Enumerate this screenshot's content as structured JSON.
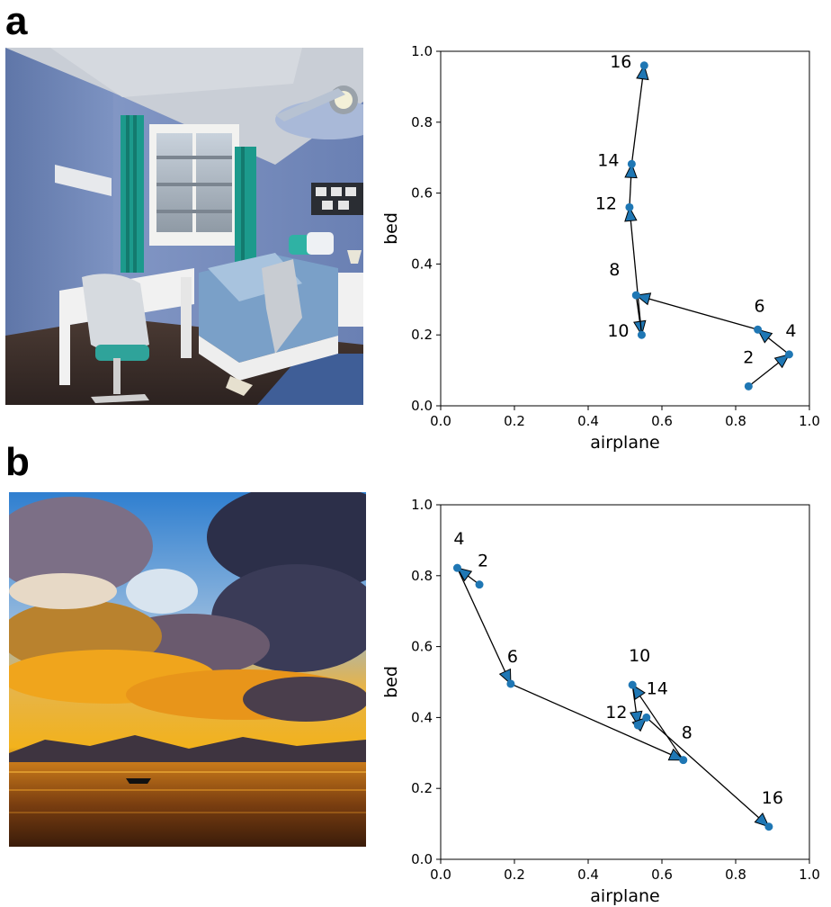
{
  "panels": [
    {
      "letter": "a"
    },
    {
      "letter": "b"
    }
  ],
  "colors": {
    "point": "#1f77b4",
    "arrow": "#000000",
    "axis": "#000000"
  },
  "chart_data": [
    {
      "type": "scatter",
      "panel": "a",
      "title": "",
      "xlabel": "airplane",
      "ylabel": "bed",
      "xlim": [
        0,
        1
      ],
      "ylim": [
        0,
        1
      ],
      "xticks": [
        "0.0",
        "0.2",
        "0.4",
        "0.6",
        "0.8",
        "1.0"
      ],
      "yticks": [
        "0.0",
        "0.2",
        "0.4",
        "0.6",
        "0.8",
        "1.0"
      ],
      "grid": false,
      "connected_by_arrows": true,
      "points": [
        {
          "label": "2",
          "x": 0.835,
          "y": 0.055
        },
        {
          "label": "4",
          "x": 0.945,
          "y": 0.145
        },
        {
          "label": "6",
          "x": 0.86,
          "y": 0.215
        },
        {
          "label": "8",
          "x": 0.53,
          "y": 0.312
        },
        {
          "label": "10",
          "x": 0.545,
          "y": 0.2
        },
        {
          "label": "12",
          "x": 0.512,
          "y": 0.56
        },
        {
          "label": "14",
          "x": 0.518,
          "y": 0.682
        },
        {
          "label": "16",
          "x": 0.552,
          "y": 0.96
        }
      ]
    },
    {
      "type": "scatter",
      "panel": "b",
      "title": "",
      "xlabel": "airplane",
      "ylabel": "bed",
      "xlim": [
        0,
        1
      ],
      "ylim": [
        0,
        1
      ],
      "xticks": [
        "0.0",
        "0.2",
        "0.4",
        "0.6",
        "0.8",
        "1.0"
      ],
      "yticks": [
        "0.0",
        "0.2",
        "0.4",
        "0.6",
        "0.8",
        "1.0"
      ],
      "grid": false,
      "connected_by_arrows": true,
      "points": [
        {
          "label": "2",
          "x": 0.105,
          "y": 0.775
        },
        {
          "label": "4",
          "x": 0.045,
          "y": 0.822
        },
        {
          "label": "6",
          "x": 0.19,
          "y": 0.495
        },
        {
          "label": "8",
          "x": 0.658,
          "y": 0.28
        },
        {
          "label": "10",
          "x": 0.52,
          "y": 0.492
        },
        {
          "label": "12",
          "x": 0.535,
          "y": 0.378
        },
        {
          "label": "14",
          "x": 0.558,
          "y": 0.4
        },
        {
          "label": "16",
          "x": 0.89,
          "y": 0.092
        }
      ]
    }
  ]
}
